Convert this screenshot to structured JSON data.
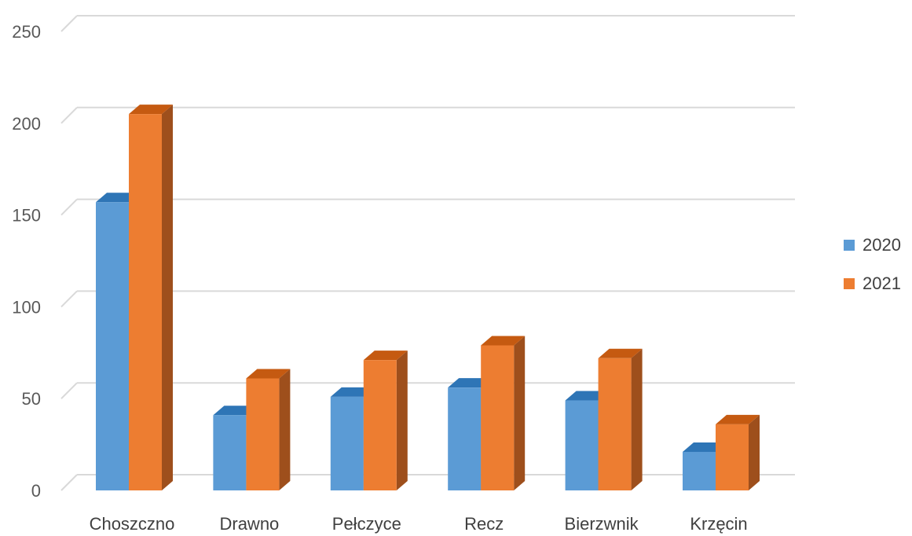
{
  "chart_data": {
    "type": "bar",
    "title": "",
    "xlabel": "",
    "ylabel": "",
    "categories": [
      "Choszczno",
      "Drawno",
      "Pełczyce",
      "Recz",
      "Bierzwnik",
      "Krzęcin"
    ],
    "series": [
      {
        "name": "2020",
        "values": [
          157,
          41,
          51,
          56,
          49,
          21
        ],
        "color": "#5B9BD5",
        "side_color": "#41719C",
        "top_color": "#2E75B6"
      },
      {
        "name": "2021",
        "values": [
          205,
          61,
          71,
          79,
          72,
          36
        ],
        "color": "#ED7D31",
        "side_color": "#9E4F1C",
        "top_color": "#C55A11"
      }
    ],
    "y_ticks": [
      "0",
      "50",
      "100",
      "150",
      "200",
      "250"
    ],
    "ylim": [
      0,
      250
    ],
    "grid": true,
    "legend_position": "right",
    "gridline_color": "#D9D9D9"
  }
}
